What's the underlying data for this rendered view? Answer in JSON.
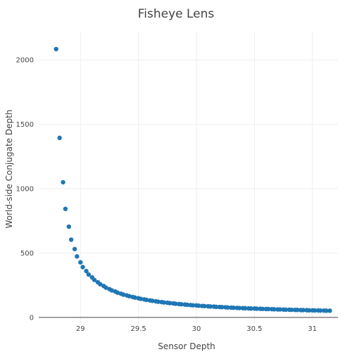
{
  "chart_data": {
    "type": "scatter",
    "title": "Fisheye Lens",
    "xlabel": "Sensor Depth",
    "ylabel": "World-side Conjugate Depth",
    "xlim": [
      28.64,
      31.22
    ],
    "ylim": [
      -50,
      2220
    ],
    "x_ticks": [
      29,
      29.5,
      30,
      30.5,
      31
    ],
    "x_tick_labels": [
      "29",
      "29.5",
      "30",
      "30.5",
      "31"
    ],
    "y_ticks": [
      0,
      500,
      1000,
      1500,
      2000
    ],
    "y_tick_labels": [
      "0",
      "500",
      "1000",
      "1500",
      "2000"
    ],
    "grid": true,
    "marker_color": "#1f77b4",
    "series": [
      {
        "x": [
          28.79,
          28.82,
          28.85,
          28.87,
          28.9,
          28.92,
          28.95,
          28.97,
          29.0,
          29.02,
          29.05,
          29.07,
          29.1,
          29.12,
          29.15,
          29.17,
          29.2,
          29.22,
          29.25,
          29.27,
          29.3,
          29.32,
          29.35,
          29.37,
          29.4,
          29.42,
          29.45,
          29.47,
          29.5,
          29.52,
          29.55,
          29.57,
          29.6,
          29.62,
          29.65,
          29.67,
          29.7,
          29.72,
          29.75,
          29.77,
          29.8,
          29.82,
          29.85,
          29.87,
          29.9,
          29.92,
          29.95,
          29.97,
          30.0,
          30.02,
          30.05,
          30.07,
          30.1,
          30.12,
          30.15,
          30.17,
          30.2,
          30.22,
          30.25,
          30.27,
          30.3,
          30.32,
          30.35,
          30.37,
          30.4,
          30.42,
          30.45,
          30.47,
          30.5,
          30.52,
          30.55,
          30.57,
          30.6,
          30.62,
          30.65,
          30.67,
          30.7,
          30.72,
          30.75,
          30.77,
          30.8,
          30.82,
          30.85,
          30.87,
          30.9,
          30.92,
          30.95,
          30.97,
          31.0,
          31.02,
          31.05,
          31.07,
          31.1,
          31.12,
          31.15
        ],
        "y": [
          2085,
          1395,
          1050,
          843,
          705,
          604,
          531,
          474,
          428,
          391,
          360,
          333,
          311,
          291,
          273,
          258,
          244,
          231,
          220,
          210,
          201,
          192,
          184,
          177,
          171,
          165,
          159,
          154,
          149,
          144,
          140,
          136,
          132,
          129,
          125,
          122,
          119,
          116,
          114,
          111,
          109,
          106,
          104,
          102,
          100,
          98,
          96,
          94,
          93,
          91,
          89,
          88,
          86,
          85,
          84,
          82,
          81,
          80,
          79,
          77,
          76,
          75,
          74,
          73,
          72,
          71,
          70,
          69,
          69,
          68,
          67,
          66,
          65,
          65,
          64,
          63,
          62,
          62,
          61,
          60,
          60,
          59,
          58,
          58,
          57,
          57,
          56,
          55,
          55,
          54,
          54,
          53,
          53,
          52,
          52
        ]
      }
    ]
  }
}
